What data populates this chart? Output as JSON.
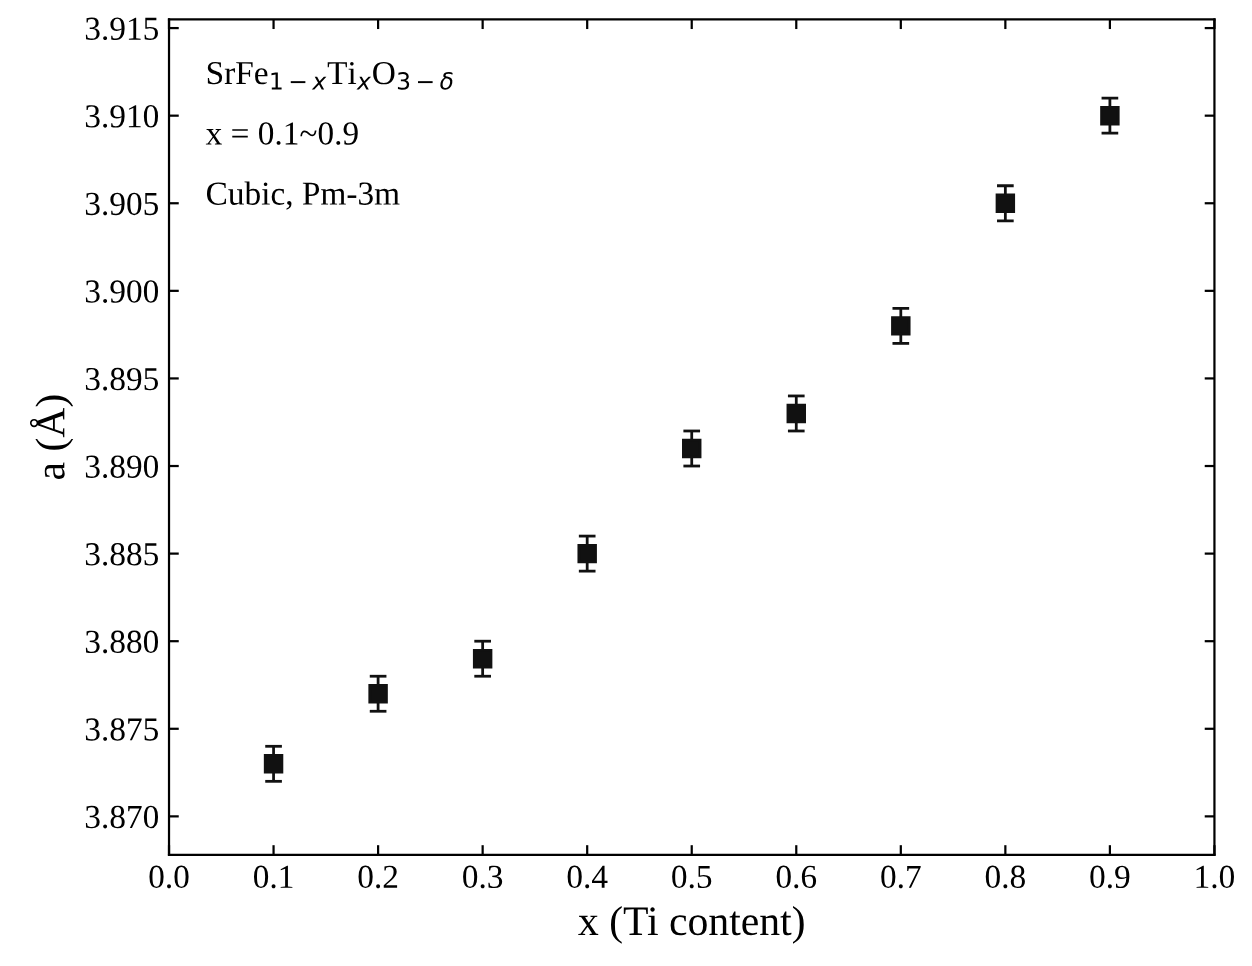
{
  "chart_data": {
    "type": "scatter",
    "xlabel": "x (Ti content)",
    "ylabel": "a (Å)",
    "x": [
      0.1,
      0.2,
      0.3,
      0.4,
      0.5,
      0.6,
      0.7,
      0.8,
      0.9
    ],
    "series": [
      {
        "color": "#111111",
        "values": [
          3.873,
          3.877,
          3.879,
          3.885,
          3.891,
          3.893,
          3.898,
          3.905,
          3.91
        ],
        "errors": [
          0.001,
          0.001,
          0.001,
          0.001,
          0.001,
          0.001,
          0.001,
          0.001,
          0.001
        ]
      }
    ],
    "marker": "square",
    "grid": false,
    "legend": false,
    "xlim": [
      0.0,
      1.0
    ],
    "xticks": [
      "0.0",
      0.1,
      0.2,
      0.3,
      0.4,
      0.5,
      0.6,
      0.7,
      0.8,
      0.9,
      "1.0"
    ],
    "ylim": [
      3.8678,
      3.9155
    ],
    "yticks": [
      "3.870",
      3.875,
      "3.880",
      3.885,
      "3.890",
      3.895,
      "3.900",
      3.905,
      "3.910",
      3.915
    ],
    "annotations": [
      "SrFe$_{1−x}$Ti$_{x}$O$_{3−δ}$",
      "x = 0.1~0.9",
      "Cubic, Pm-3m"
    ]
  }
}
